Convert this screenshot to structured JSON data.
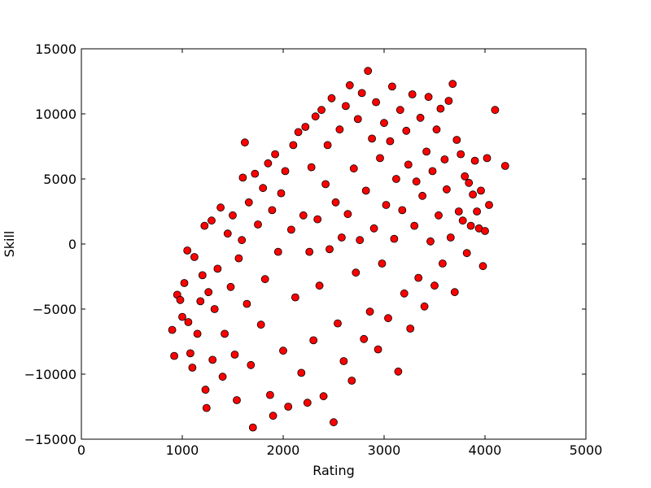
{
  "chart_data": {
    "type": "scatter",
    "title": "",
    "xlabel": "Rating",
    "ylabel": "Skill",
    "xlim": [
      0,
      5000
    ],
    "ylim": [
      -15000,
      15000
    ],
    "xticks": [
      0,
      1000,
      2000,
      3000,
      4000,
      5000
    ],
    "yticks": [
      -15000,
      -10000,
      -5000,
      0,
      5000,
      10000,
      15000
    ],
    "xtick_labels": [
      "0",
      "1000",
      "2000",
      "3000",
      "4000",
      "5000"
    ],
    "ytick_labels": [
      "−15000",
      "−10000",
      "−5000",
      "0",
      "5000",
      "10000",
      "15000"
    ],
    "grid": false,
    "legend": "none",
    "marker_color": "#ff0000",
    "marker_edge_color": "#000000",
    "series": [
      {
        "points": [
          [
            900,
            -6600
          ],
          [
            920,
            -8600
          ],
          [
            950,
            -3900
          ],
          [
            980,
            -4300
          ],
          [
            1000,
            -5600
          ],
          [
            1020,
            -3000
          ],
          [
            1050,
            -500
          ],
          [
            1060,
            -6000
          ],
          [
            1080,
            -8400
          ],
          [
            1100,
            -9500
          ],
          [
            1120,
            -1000
          ],
          [
            1150,
            -6900
          ],
          [
            1180,
            -4400
          ],
          [
            1200,
            -2400
          ],
          [
            1220,
            1400
          ],
          [
            1230,
            -11200
          ],
          [
            1240,
            -12600
          ],
          [
            1260,
            -3700
          ],
          [
            1290,
            1800
          ],
          [
            1300,
            -8900
          ],
          [
            1320,
            -5000
          ],
          [
            1350,
            -1900
          ],
          [
            1380,
            2800
          ],
          [
            1400,
            -10200
          ],
          [
            1420,
            -6900
          ],
          [
            1450,
            800
          ],
          [
            1480,
            -3300
          ],
          [
            1500,
            2200
          ],
          [
            1520,
            -8500
          ],
          [
            1540,
            -12000
          ],
          [
            1560,
            -1100
          ],
          [
            1590,
            300
          ],
          [
            1600,
            5100
          ],
          [
            1620,
            7800
          ],
          [
            1640,
            -4600
          ],
          [
            1660,
            3200
          ],
          [
            1680,
            -9300
          ],
          [
            1700,
            -14100
          ],
          [
            1720,
            5400
          ],
          [
            1750,
            1500
          ],
          [
            1780,
            -6200
          ],
          [
            1800,
            4300
          ],
          [
            1820,
            -2700
          ],
          [
            1850,
            6200
          ],
          [
            1870,
            -11600
          ],
          [
            1890,
            2600
          ],
          [
            1900,
            -13200
          ],
          [
            1920,
            6900
          ],
          [
            1950,
            -600
          ],
          [
            1980,
            3900
          ],
          [
            2000,
            -8200
          ],
          [
            2020,
            5600
          ],
          [
            2050,
            -12500
          ],
          [
            2080,
            1100
          ],
          [
            2100,
            7600
          ],
          [
            2120,
            -4100
          ],
          [
            2150,
            8600
          ],
          [
            2180,
            -9900
          ],
          [
            2200,
            2200
          ],
          [
            2220,
            9000
          ],
          [
            2240,
            -12200
          ],
          [
            2260,
            -600
          ],
          [
            2280,
            5900
          ],
          [
            2300,
            -7400
          ],
          [
            2320,
            9800
          ],
          [
            2340,
            1900
          ],
          [
            2360,
            -3200
          ],
          [
            2380,
            10300
          ],
          [
            2400,
            -11700
          ],
          [
            2420,
            4600
          ],
          [
            2440,
            7600
          ],
          [
            2460,
            -400
          ],
          [
            2480,
            11200
          ],
          [
            2500,
            -13700
          ],
          [
            2520,
            3200
          ],
          [
            2540,
            -6100
          ],
          [
            2560,
            8800
          ],
          [
            2580,
            500
          ],
          [
            2600,
            -9000
          ],
          [
            2620,
            10600
          ],
          [
            2640,
            2300
          ],
          [
            2660,
            12200
          ],
          [
            2680,
            -10500
          ],
          [
            2700,
            5800
          ],
          [
            2720,
            -2200
          ],
          [
            2740,
            9600
          ],
          [
            2760,
            300
          ],
          [
            2780,
            11600
          ],
          [
            2800,
            -7300
          ],
          [
            2820,
            4100
          ],
          [
            2840,
            13300
          ],
          [
            2860,
            -5200
          ],
          [
            2880,
            8100
          ],
          [
            2900,
            1200
          ],
          [
            2920,
            10900
          ],
          [
            2940,
            -8100
          ],
          [
            2960,
            6600
          ],
          [
            2980,
            -1500
          ],
          [
            3000,
            9300
          ],
          [
            3020,
            3000
          ],
          [
            3040,
            -5700
          ],
          [
            3060,
            7900
          ],
          [
            3080,
            12100
          ],
          [
            3100,
            400
          ],
          [
            3120,
            5000
          ],
          [
            3140,
            -9800
          ],
          [
            3160,
            10300
          ],
          [
            3180,
            2600
          ],
          [
            3200,
            -3800
          ],
          [
            3220,
            8700
          ],
          [
            3240,
            6100
          ],
          [
            3260,
            -6500
          ],
          [
            3280,
            11500
          ],
          [
            3300,
            1400
          ],
          [
            3320,
            4800
          ],
          [
            3340,
            -2600
          ],
          [
            3360,
            9700
          ],
          [
            3380,
            3700
          ],
          [
            3400,
            -4800
          ],
          [
            3420,
            7100
          ],
          [
            3440,
            11300
          ],
          [
            3460,
            200
          ],
          [
            3480,
            5600
          ],
          [
            3500,
            -3200
          ],
          [
            3520,
            8800
          ],
          [
            3540,
            2200
          ],
          [
            3560,
            10400
          ],
          [
            3580,
            -1500
          ],
          [
            3600,
            6500
          ],
          [
            3620,
            4200
          ],
          [
            3640,
            11000
          ],
          [
            3660,
            500
          ],
          [
            3680,
            12300
          ],
          [
            3700,
            -3700
          ],
          [
            3720,
            8000
          ],
          [
            3740,
            2500
          ],
          [
            3760,
            6900
          ],
          [
            3780,
            1800
          ],
          [
            3800,
            5200
          ],
          [
            3820,
            -700
          ],
          [
            3840,
            4700
          ],
          [
            3860,
            1400
          ],
          [
            3880,
            3800
          ],
          [
            3900,
            6400
          ],
          [
            3920,
            2500
          ],
          [
            3940,
            1200
          ],
          [
            3960,
            4100
          ],
          [
            3980,
            -1700
          ],
          [
            4000,
            1000
          ],
          [
            4020,
            6600
          ],
          [
            4040,
            3000
          ],
          [
            4100,
            10300
          ],
          [
            4200,
            6000
          ]
        ]
      }
    ]
  }
}
